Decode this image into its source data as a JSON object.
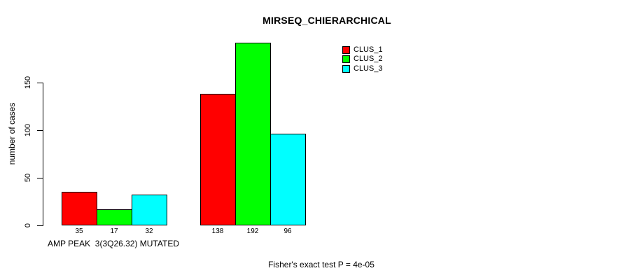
{
  "chart_data": {
    "type": "bar",
    "title": "MIRSEQ_CHIERARCHICAL",
    "ylabel": "number of cases",
    "xlabel": "AMP PEAK  3(3Q26.32) MUTATED",
    "annotation": "Fisher's exact test P = 4e-05",
    "group_count": 2,
    "series": [
      {
        "name": "CLUS_1",
        "color": "#FF0000",
        "values": [
          35,
          138
        ]
      },
      {
        "name": "CLUS_2",
        "color": "#00FF00",
        "values": [
          17,
          192
        ]
      },
      {
        "name": "CLUS_3",
        "color": "#00FFFF",
        "values": [
          32,
          96
        ]
      }
    ],
    "yticks": [
      0,
      50,
      100,
      150
    ],
    "axis_ylim": [
      0,
      150
    ],
    "show_bar_value_labels": true,
    "legend_position": "top-right",
    "grid": false,
    "bar_border_color": "#000000",
    "background_color": "#FFFFFF"
  }
}
